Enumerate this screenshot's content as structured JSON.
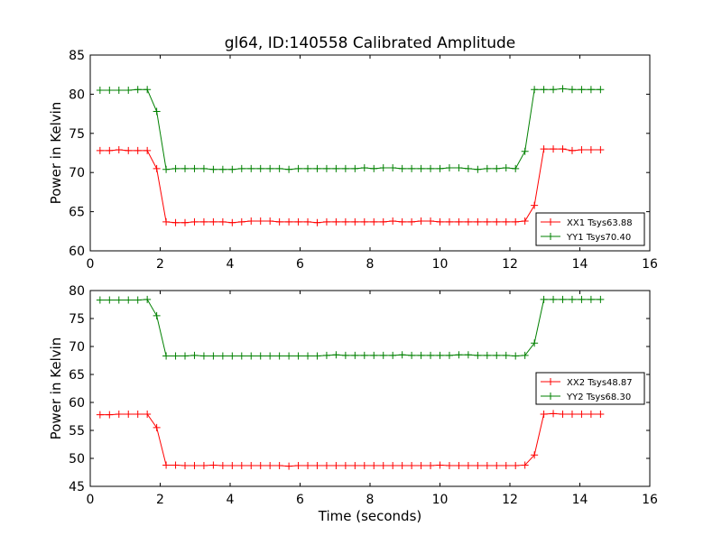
{
  "title": "gl64, ID:140558 Calibrated Amplitude",
  "colors": {
    "series_xx": "#ff0000",
    "series_yy": "#008000",
    "axis": "#000000",
    "background": "#ffffff"
  },
  "chart_data": [
    {
      "type": "line",
      "xlabel": "",
      "ylabel": "Power in Kelvin",
      "xlim": [
        0,
        16
      ],
      "ylim": [
        60,
        85
      ],
      "xticks": [
        0,
        2,
        4,
        6,
        8,
        10,
        12,
        14,
        16
      ],
      "yticks": [
        60,
        65,
        70,
        75,
        80,
        85
      ],
      "legend_position": "lower-right",
      "grid": false,
      "x": [
        0.28,
        0.55,
        0.82,
        1.09,
        1.36,
        1.63,
        1.9,
        2.17,
        2.44,
        2.71,
        2.98,
        3.25,
        3.52,
        3.79,
        4.06,
        4.33,
        4.6,
        4.87,
        5.14,
        5.41,
        5.68,
        5.95,
        6.22,
        6.49,
        6.76,
        7.03,
        7.3,
        7.57,
        7.84,
        8.11,
        8.38,
        8.65,
        8.92,
        9.19,
        9.46,
        9.73,
        10.0,
        10.27,
        10.54,
        10.81,
        11.08,
        11.35,
        11.62,
        11.89,
        12.16,
        12.43,
        12.7,
        12.97,
        13.24,
        13.51,
        13.78,
        14.05,
        14.32,
        14.59
      ],
      "series": [
        {
          "name": "XX1 Tsys63.88",
          "color": "#ff0000",
          "values": [
            72.8,
            72.8,
            72.9,
            72.8,
            72.8,
            72.8,
            70.5,
            63.7,
            63.6,
            63.6,
            63.7,
            63.7,
            63.7,
            63.7,
            63.6,
            63.7,
            63.8,
            63.8,
            63.8,
            63.7,
            63.7,
            63.7,
            63.7,
            63.6,
            63.7,
            63.7,
            63.7,
            63.7,
            63.7,
            63.7,
            63.7,
            63.8,
            63.7,
            63.7,
            63.8,
            63.8,
            63.7,
            63.7,
            63.7,
            63.7,
            63.7,
            63.7,
            63.7,
            63.7,
            63.7,
            63.8,
            65.8,
            73.0,
            73.0,
            73.0,
            72.8,
            72.9,
            72.9,
            72.9
          ]
        },
        {
          "name": "YY1 Tsys70.40",
          "color": "#008000",
          "values": [
            80.5,
            80.5,
            80.5,
            80.5,
            80.6,
            80.6,
            77.8,
            70.4,
            70.5,
            70.5,
            70.5,
            70.5,
            70.4,
            70.4,
            70.4,
            70.5,
            70.5,
            70.5,
            70.5,
            70.5,
            70.4,
            70.5,
            70.5,
            70.5,
            70.5,
            70.5,
            70.5,
            70.5,
            70.6,
            70.5,
            70.6,
            70.6,
            70.5,
            70.5,
            70.5,
            70.5,
            70.5,
            70.6,
            70.6,
            70.5,
            70.4,
            70.5,
            70.5,
            70.6,
            70.5,
            72.7,
            80.6,
            80.6,
            80.6,
            80.7,
            80.6,
            80.6,
            80.6,
            80.6
          ]
        }
      ]
    },
    {
      "type": "line",
      "xlabel": "Time (seconds)",
      "ylabel": "Power in Kelvin",
      "xlim": [
        0,
        16
      ],
      "ylim": [
        45,
        80
      ],
      "xticks": [
        0,
        2,
        4,
        6,
        8,
        10,
        12,
        14,
        16
      ],
      "yticks": [
        45,
        50,
        55,
        60,
        65,
        70,
        75,
        80
      ],
      "legend_position": "center-right",
      "grid": false,
      "x": [
        0.28,
        0.55,
        0.82,
        1.09,
        1.36,
        1.63,
        1.9,
        2.17,
        2.44,
        2.71,
        2.98,
        3.25,
        3.52,
        3.79,
        4.06,
        4.33,
        4.6,
        4.87,
        5.14,
        5.41,
        5.68,
        5.95,
        6.22,
        6.49,
        6.76,
        7.03,
        7.3,
        7.57,
        7.84,
        8.11,
        8.38,
        8.65,
        8.92,
        9.19,
        9.46,
        9.73,
        10.0,
        10.27,
        10.54,
        10.81,
        11.08,
        11.35,
        11.62,
        11.89,
        12.16,
        12.43,
        12.7,
        12.97,
        13.24,
        13.51,
        13.78,
        14.05,
        14.32,
        14.59
      ],
      "series": [
        {
          "name": "XX2 Tsys48.87",
          "color": "#ff0000",
          "values": [
            57.8,
            57.8,
            57.9,
            57.9,
            57.9,
            57.9,
            55.5,
            48.8,
            48.8,
            48.7,
            48.7,
            48.7,
            48.8,
            48.7,
            48.7,
            48.7,
            48.7,
            48.7,
            48.7,
            48.7,
            48.6,
            48.7,
            48.7,
            48.7,
            48.7,
            48.7,
            48.7,
            48.7,
            48.7,
            48.7,
            48.7,
            48.7,
            48.7,
            48.7,
            48.7,
            48.7,
            48.8,
            48.7,
            48.7,
            48.7,
            48.7,
            48.7,
            48.7,
            48.7,
            48.7,
            48.8,
            50.6,
            57.9,
            58.0,
            57.9,
            57.9,
            57.9,
            57.9,
            57.9
          ]
        },
        {
          "name": "YY2 Tsys68.30",
          "color": "#008000",
          "values": [
            78.3,
            78.3,
            78.3,
            78.3,
            78.3,
            78.4,
            75.5,
            68.3,
            68.3,
            68.3,
            68.4,
            68.3,
            68.3,
            68.3,
            68.3,
            68.3,
            68.3,
            68.3,
            68.3,
            68.3,
            68.3,
            68.3,
            68.3,
            68.3,
            68.4,
            68.5,
            68.4,
            68.4,
            68.4,
            68.4,
            68.4,
            68.4,
            68.5,
            68.4,
            68.4,
            68.4,
            68.4,
            68.4,
            68.5,
            68.5,
            68.4,
            68.4,
            68.4,
            68.4,
            68.3,
            68.4,
            70.6,
            78.4,
            78.4,
            78.4,
            78.4,
            78.4,
            78.4,
            78.4
          ]
        }
      ]
    }
  ]
}
